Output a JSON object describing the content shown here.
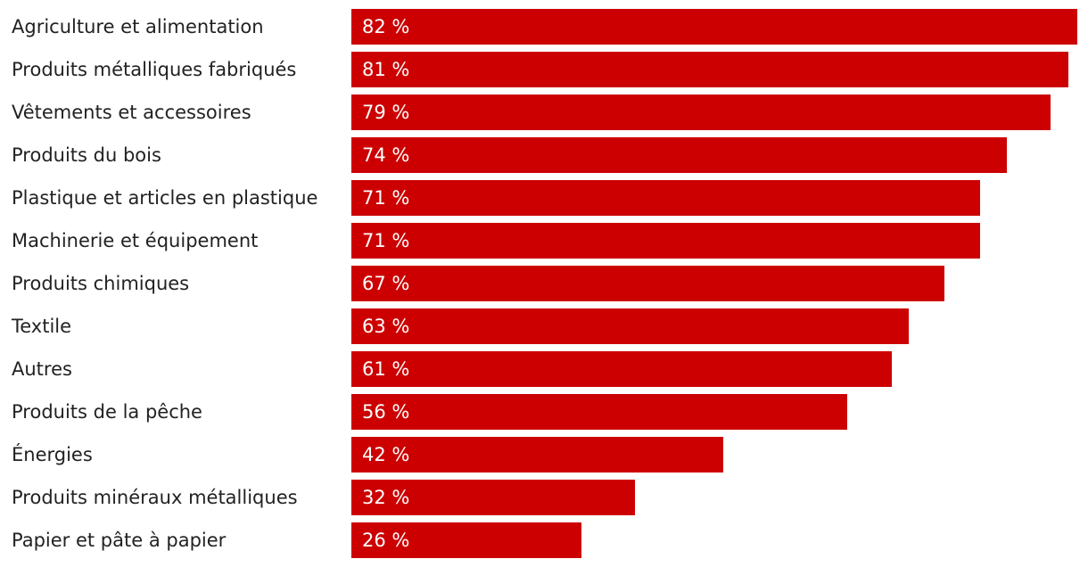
{
  "chart_data": {
    "type": "bar",
    "orientation": "horizontal",
    "bar_color": "#cc0000",
    "value_label_color": "#ffffff",
    "value_suffix": " %",
    "xlim": [
      0,
      82
    ],
    "grid": false,
    "categories": [
      "Agriculture et alimentation",
      "Produits métalliques fabriqués",
      "Vêtements et accessoires",
      "Produits du bois",
      "Plastique et articles en plastique",
      "Machinerie et équipement",
      "Produits chimiques",
      "Textile",
      "Autres",
      "Produits de la pêche",
      "Énergies",
      "Produits minéraux métalliques",
      "Papier et pâte à papier"
    ],
    "values": [
      82,
      81,
      79,
      74,
      71,
      71,
      67,
      63,
      61,
      56,
      42,
      32,
      26
    ],
    "value_labels": [
      "82 %",
      "81 %",
      "79 %",
      "74 %",
      "71 %",
      "71 %",
      "67 %",
      "63 %",
      "61 %",
      "56 %",
      "42 %",
      "32 %",
      "26 %"
    ]
  }
}
